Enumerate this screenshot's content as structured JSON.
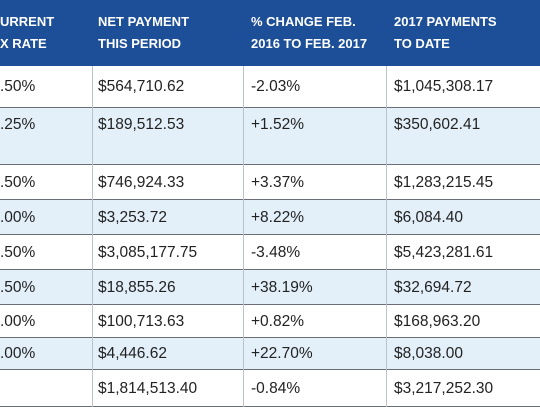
{
  "table": {
    "header": [
      [
        "URRENT",
        "X RATE"
      ],
      [
        "NET PAYMENT",
        "THIS PERIOD"
      ],
      [
        "% CHANGE FEB.",
        "2016 TO FEB. 2017"
      ],
      [
        "2017 PAYMENTS",
        "TO DATE"
      ]
    ],
    "rows": [
      [
        ".50%",
        "$564,710.62",
        "-2.03%",
        "$1,045,308.17"
      ],
      [
        ".25%",
        "$189,512.53",
        "+1.52%",
        "$350,602.41"
      ],
      [
        ".50%",
        "$746,924.33",
        "+3.37%",
        "$1,283,215.45"
      ],
      [
        ".00%",
        "$3,253.72",
        "+8.22%",
        "$6,084.40"
      ],
      [
        ".50%",
        "$3,085,177.75",
        "-3.48%",
        "$5,423,281.61"
      ],
      [
        ".50%",
        "$18,855.26",
        "+38.19%",
        "$32,694.72"
      ],
      [
        ".00%",
        "$100,713.63",
        "+0.82%",
        "$168,963.20"
      ],
      [
        ".00%",
        "$4,446.62",
        "+22.70%",
        "$8,038.00"
      ],
      [
        null,
        "$1,814,513.40",
        "-0.84%",
        "$3,217,252.30"
      ]
    ]
  }
}
